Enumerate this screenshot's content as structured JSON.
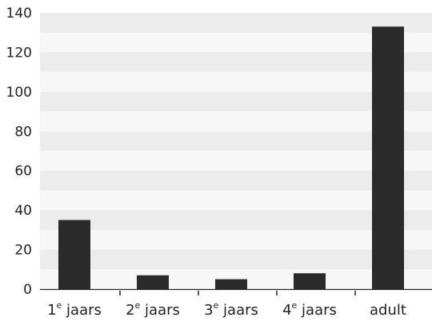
{
  "chart_data": {
    "type": "bar",
    "title": "",
    "xlabel": "",
    "ylabel": "",
    "categories": [
      {
        "main": "1",
        "sup": "e",
        "rest": " jaars"
      },
      {
        "main": "2",
        "sup": "e",
        "rest": " jaars"
      },
      {
        "main": "3",
        "sup": "e",
        "rest": " jaars"
      },
      {
        "main": "4",
        "sup": "e",
        "rest": " jaars"
      },
      {
        "main": "adult",
        "sup": "",
        "rest": ""
      }
    ],
    "values": [
      35,
      7,
      5,
      8,
      133
    ],
    "ylim": [
      0,
      140
    ],
    "yticks": [
      "0",
      "20",
      "40",
      "60",
      "80",
      "100",
      "120",
      "140"
    ],
    "grid": "alternating horizontal bands",
    "legend": "none",
    "colors": {
      "bar": "#2b2b2b",
      "band_dark": "#ececec",
      "band_light": "#f7f7f7",
      "axis": "#222222"
    }
  }
}
